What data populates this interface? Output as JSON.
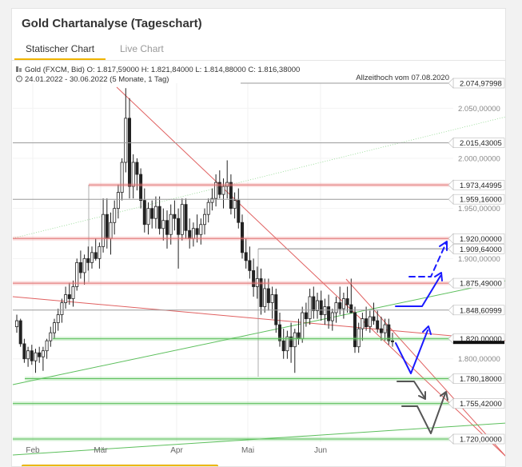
{
  "header": {
    "title": "Gold Chartanalyse (Tageschart)"
  },
  "tabs": [
    {
      "label": "Statischer Chart",
      "active": true
    },
    {
      "label": "Live Chart",
      "active": false
    }
  ],
  "chart_data": {
    "type": "candlestick",
    "instrument_line": "Gold (FXCM, Bid)  O: 1.817,59000  H: 1.821,84000  L: 1.814,88000  C: 1.816,38000",
    "period_line": "24.01.2022 - 30.06.2022   (5 Monate, 1 Tag)",
    "annotation": "Allzeithoch vom 07.08.2020",
    "x_ticks": [
      "Feb",
      "Mär",
      "Apr",
      "Mai",
      "Jun"
    ],
    "y_ticks": [
      "2.050,00000",
      "2.000,00000",
      "1.950,00000",
      "1.900,00000",
      "1.800,00000"
    ],
    "y_tick_values": [
      2050,
      2000,
      1950,
      1900,
      1800
    ],
    "ylim": [
      1700,
      2090
    ],
    "levels": [
      {
        "value": 2074.97998,
        "label": "2.074,97998",
        "style": "gray"
      },
      {
        "value": 2015.43005,
        "label": "2.015,43005",
        "style": "gray"
      },
      {
        "value": 1973.44995,
        "label": "1.973,44995",
        "style": "red"
      },
      {
        "value": 1959.16,
        "label": "1.959,16000",
        "style": "gray"
      },
      {
        "value": 1920.0,
        "label": "1.920,00000",
        "style": "red"
      },
      {
        "value": 1909.64,
        "label": "1.909,64000",
        "style": "gray"
      },
      {
        "value": 1875.49,
        "label": "1.875,49000",
        "style": "red"
      },
      {
        "value": 1848.60999,
        "label": "1.848,60999",
        "style": "gray"
      },
      {
        "value": 1820.0,
        "label": "1.820,00000",
        "style": "green"
      },
      {
        "value": 1780.18,
        "label": "1.780,18000",
        "style": "green"
      },
      {
        "value": 1755.42,
        "label": "1.755,42000",
        "style": "green"
      },
      {
        "value": 1720.0,
        "label": "1.720,00000",
        "style": "green"
      }
    ],
    "last_close": 1816.38,
    "candles": [
      [
        1832,
        1844,
        1826,
        1838
      ],
      [
        1838,
        1840,
        1812,
        1815
      ],
      [
        1815,
        1820,
        1796,
        1800
      ],
      [
        1800,
        1812,
        1792,
        1808
      ],
      [
        1808,
        1814,
        1794,
        1798
      ],
      [
        1798,
        1810,
        1786,
        1806
      ],
      [
        1806,
        1812,
        1796,
        1802
      ],
      [
        1802,
        1812,
        1788,
        1808
      ],
      [
        1808,
        1820,
        1800,
        1818
      ],
      [
        1818,
        1832,
        1812,
        1826
      ],
      [
        1826,
        1840,
        1820,
        1836
      ],
      [
        1836,
        1850,
        1828,
        1844
      ],
      [
        1844,
        1860,
        1836,
        1856
      ],
      [
        1856,
        1872,
        1850,
        1864
      ],
      [
        1864,
        1876,
        1854,
        1860
      ],
      [
        1860,
        1878,
        1852,
        1872
      ],
      [
        1872,
        1900,
        1868,
        1896
      ],
      [
        1896,
        1908,
        1880,
        1886
      ],
      [
        1886,
        1904,
        1874,
        1900
      ],
      [
        1900,
        1912,
        1888,
        1896
      ],
      [
        1896,
        1912,
        1890,
        1906
      ],
      [
        1906,
        1920,
        1898,
        1900
      ],
      [
        1900,
        1916,
        1890,
        1912
      ],
      [
        1912,
        1960,
        1906,
        1944
      ],
      [
        1944,
        1960,
        1910,
        1920
      ],
      [
        1920,
        1946,
        1904,
        1936
      ],
      [
        1936,
        1958,
        1924,
        1950
      ],
      [
        1950,
        1974,
        1940,
        1966
      ],
      [
        1966,
        2000,
        1958,
        1996
      ],
      [
        1996,
        2070,
        1986,
        2040
      ],
      [
        2040,
        2060,
        1960,
        1972
      ],
      [
        1972,
        2004,
        1960,
        1996
      ],
      [
        1996,
        2000,
        1968,
        1984
      ],
      [
        1984,
        1990,
        1950,
        1958
      ],
      [
        1958,
        1970,
        1926,
        1934
      ],
      [
        1934,
        1956,
        1924,
        1950
      ],
      [
        1950,
        1958,
        1930,
        1940
      ],
      [
        1940,
        1962,
        1930,
        1952
      ],
      [
        1952,
        1962,
        1924,
        1930
      ],
      [
        1930,
        1950,
        1918,
        1938
      ],
      [
        1938,
        1948,
        1910,
        1924
      ],
      [
        1924,
        1954,
        1914,
        1944
      ],
      [
        1944,
        1958,
        1928,
        1940
      ],
      [
        1940,
        1950,
        1890,
        1924
      ],
      [
        1924,
        1960,
        1918,
        1954
      ],
      [
        1954,
        1960,
        1920,
        1928
      ],
      [
        1928,
        1940,
        1910,
        1920
      ],
      [
        1920,
        1936,
        1912,
        1930
      ],
      [
        1930,
        1944,
        1916,
        1924
      ],
      [
        1924,
        1940,
        1914,
        1934
      ],
      [
        1934,
        1950,
        1924,
        1944
      ],
      [
        1944,
        1960,
        1936,
        1956
      ],
      [
        1956,
        1970,
        1948,
        1960
      ],
      [
        1960,
        1984,
        1952,
        1976
      ],
      [
        1976,
        1988,
        1960,
        1964
      ],
      [
        1964,
        1980,
        1950,
        1972
      ],
      [
        1972,
        1998,
        1960,
        1976
      ],
      [
        1976,
        1984,
        1944,
        1950
      ],
      [
        1950,
        1966,
        1940,
        1958
      ],
      [
        1958,
        1970,
        1930,
        1936
      ],
      [
        1936,
        1944,
        1900,
        1906
      ],
      [
        1906,
        1920,
        1890,
        1898
      ],
      [
        1898,
        1912,
        1880,
        1888
      ],
      [
        1888,
        1900,
        1862,
        1872
      ],
      [
        1872,
        1892,
        1860,
        1880
      ],
      [
        1880,
        1890,
        1844,
        1852
      ],
      [
        1852,
        1880,
        1846,
        1870
      ],
      [
        1870,
        1880,
        1848,
        1856
      ],
      [
        1856,
        1872,
        1840,
        1864
      ],
      [
        1864,
        1870,
        1826,
        1834
      ],
      [
        1834,
        1846,
        1812,
        1818
      ],
      [
        1818,
        1830,
        1800,
        1808
      ],
      [
        1808,
        1828,
        1800,
        1822
      ],
      [
        1822,
        1836,
        1796,
        1812
      ],
      [
        1812,
        1830,
        1786,
        1826
      ],
      [
        1826,
        1840,
        1814,
        1820
      ],
      [
        1820,
        1852,
        1816,
        1846
      ],
      [
        1846,
        1856,
        1832,
        1840
      ],
      [
        1840,
        1870,
        1834,
        1862
      ],
      [
        1862,
        1872,
        1840,
        1848
      ],
      [
        1848,
        1866,
        1840,
        1858
      ],
      [
        1858,
        1868,
        1838,
        1844
      ],
      [
        1844,
        1860,
        1834,
        1852
      ],
      [
        1852,
        1864,
        1830,
        1838
      ],
      [
        1838,
        1850,
        1828,
        1846
      ],
      [
        1846,
        1862,
        1836,
        1856
      ],
      [
        1856,
        1872,
        1844,
        1850
      ],
      [
        1850,
        1866,
        1840,
        1860
      ],
      [
        1860,
        1872,
        1846,
        1854
      ],
      [
        1854,
        1880,
        1846,
        1846
      ],
      [
        1846,
        1852,
        1806,
        1812
      ],
      [
        1812,
        1836,
        1806,
        1830
      ],
      [
        1830,
        1846,
        1818,
        1840
      ],
      [
        1840,
        1852,
        1828,
        1832
      ],
      [
        1832,
        1848,
        1826,
        1842
      ],
      [
        1842,
        1856,
        1834,
        1838
      ],
      [
        1838,
        1848,
        1826,
        1830
      ],
      [
        1830,
        1842,
        1818,
        1826
      ],
      [
        1826,
        1840,
        1818,
        1834
      ],
      [
        1834,
        1840,
        1814,
        1818
      ],
      [
        1818,
        1826,
        1812,
        1817
      ]
    ]
  }
}
